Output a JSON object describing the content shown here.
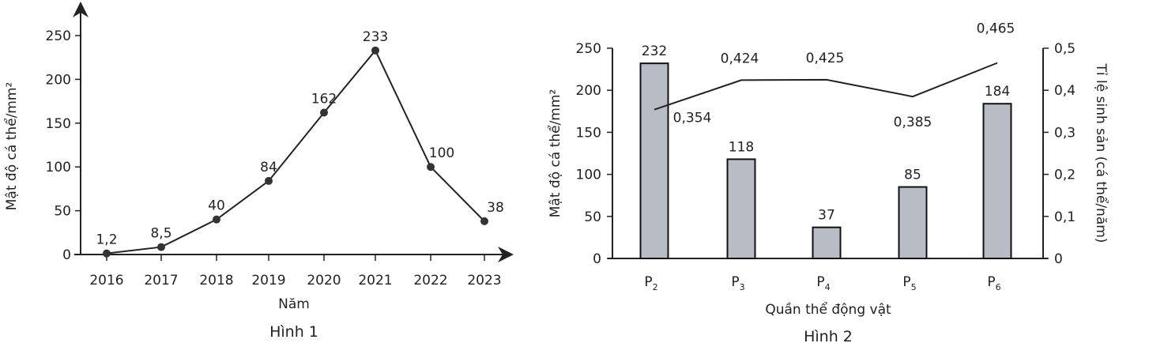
{
  "chart_data": [
    {
      "type": "line",
      "title": "Hình 1",
      "xlabel": "Năm",
      "ylabel": "Mật độ cá thể/mm²",
      "ylim": [
        0,
        250
      ],
      "yticks": [
        0,
        50,
        100,
        150,
        200,
        250
      ],
      "categories": [
        "2016",
        "2017",
        "2018",
        "2019",
        "2020",
        "2021",
        "2022",
        "2023"
      ],
      "values": [
        1.2,
        8.5,
        40,
        84,
        162,
        233,
        100,
        38
      ],
      "data_labels": [
        "1,2",
        "8,5",
        "40",
        "84",
        "162",
        "233",
        "100",
        "38"
      ],
      "grid": false
    },
    {
      "type": "bar",
      "title": "Hình 2",
      "xlabel": "Quần thể động vật",
      "ylabel": "Mật độ cá thể/mm²",
      "y2label": "Tỉ lệ sinh sản (cá thể/năm)",
      "ylim": [
        0,
        250
      ],
      "y2lim": [
        0,
        0.5
      ],
      "yticks": [
        0,
        50,
        100,
        150,
        200,
        250
      ],
      "y2ticks": [
        "0",
        "0,1",
        "0,2",
        "0,3",
        "0,4",
        "0,5"
      ],
      "categories": [
        "P",
        "P",
        "P",
        "P",
        "P"
      ],
      "category_subscripts": [
        "2",
        "3",
        "4",
        "5",
        "6"
      ],
      "series": [
        {
          "name": "Mật độ cá thể/mm²",
          "type": "bar",
          "values": [
            232,
            118,
            37,
            85,
            184
          ],
          "data_labels": [
            "232",
            "118",
            "37",
            "85",
            "184"
          ],
          "color": "#b8bcc4"
        },
        {
          "name": "Tỉ lệ sinh sản",
          "type": "line",
          "axis": "right",
          "values": [
            0.354,
            0.424,
            0.425,
            0.385,
            0.465
          ],
          "data_labels": [
            "0,354",
            "0,424",
            "0,425",
            "0,385",
            "0,465"
          ]
        }
      ],
      "grid": false
    }
  ]
}
